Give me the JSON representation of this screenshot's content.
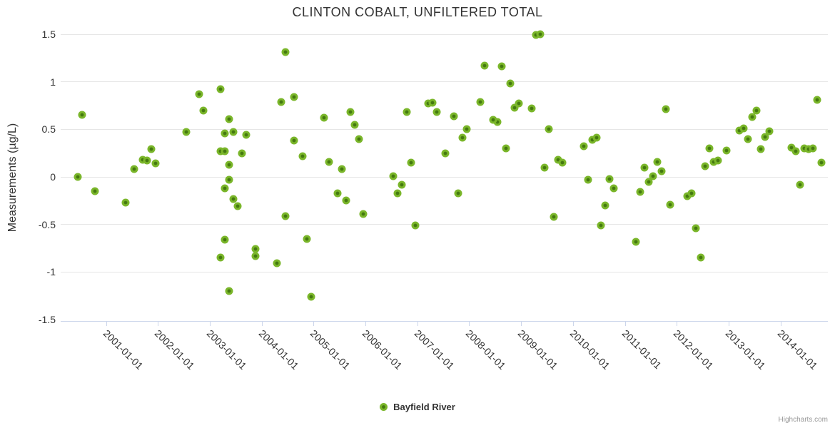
{
  "title": "CLINTON COBALT, UNFILTERED TOTAL",
  "y_axis": {
    "title": "Measurements (µg/L)",
    "tick_labels": [
      "1.5",
      "1",
      "0.5",
      "0",
      "-0.5",
      "-1",
      "-1.5"
    ],
    "tick_values": [
      1.5,
      1,
      0.5,
      0,
      -0.5,
      -1,
      -1.5
    ]
  },
  "x_axis": {
    "tick_labels": [
      "2001-01-01",
      "2002-01-01",
      "2003-01-01",
      "2004-01-01",
      "2005-01-01",
      "2006-01-01",
      "2007-01-01",
      "2008-01-01",
      "2009-01-01",
      "2010-01-01",
      "2011-01-01",
      "2012-01-01",
      "2013-01-01",
      "2014-01-01"
    ]
  },
  "legend": {
    "label": "Bayfield River"
  },
  "credits": "Highcharts.com",
  "colors": {
    "marker_outer": "#7ab62a",
    "marker_inner": "#44790f",
    "grid": "#e6e6e6",
    "axis_line": "#ccd6eb",
    "text": "#333333",
    "credits_text": "#999999"
  },
  "chart_data": {
    "type": "scatter",
    "title": "CLINTON COBALT, UNFILTERED TOTAL",
    "xlabel": "",
    "ylabel": "Measurements (µg/L)",
    "ylim": [
      -1.5,
      1.5
    ],
    "x_tick_years": [
      2001,
      2002,
      2003,
      2004,
      2005,
      2006,
      2007,
      2008,
      2009,
      2010,
      2011,
      2012,
      2013,
      2014
    ],
    "grid": "horizontal-only",
    "legend_position": "bottom-center",
    "series": [
      {
        "name": "Bayfield River",
        "points": [
          [
            "2000-06",
            0
          ],
          [
            "2000-07",
            0.65
          ],
          [
            "2000-10",
            -0.15
          ],
          [
            "2001-05",
            -0.27
          ],
          [
            "2001-07",
            0.08
          ],
          [
            "2001-09",
            0.18
          ],
          [
            "2001-10",
            0.17
          ],
          [
            "2001-11",
            0.29
          ],
          [
            "2001-12",
            0.14
          ],
          [
            "2002-07",
            0.47
          ],
          [
            "2002-10",
            0.87
          ],
          [
            "2002-11",
            0.7
          ],
          [
            "2003-03",
            0.92
          ],
          [
            "2003-05",
            0.61
          ],
          [
            "2003-04",
            0.46
          ],
          [
            "2003-06",
            0.47
          ],
          [
            "2003-03",
            0.27
          ],
          [
            "2003-04",
            0.27
          ],
          [
            "2003-08",
            0.25
          ],
          [
            "2003-09",
            0.44
          ],
          [
            "2003-05",
            0.13
          ],
          [
            "2003-05",
            -0.03
          ],
          [
            "2003-04",
            -0.12
          ],
          [
            "2003-06",
            -0.23
          ],
          [
            "2003-07",
            -0.31
          ],
          [
            "2003-04",
            -0.66
          ],
          [
            "2003-03",
            -0.85
          ],
          [
            "2003-05",
            -1.2
          ],
          [
            "2003-11",
            -0.76
          ],
          [
            "2003-11",
            -0.83
          ],
          [
            "2004-04",
            -0.91
          ],
          [
            "2004-06",
            -0.41
          ],
          [
            "2004-06",
            1.31
          ],
          [
            "2004-05",
            0.79
          ],
          [
            "2004-08",
            0.84
          ],
          [
            "2004-08",
            0.38
          ],
          [
            "2004-10",
            0.22
          ],
          [
            "2004-11",
            -0.65
          ],
          [
            "2004-12",
            -1.26
          ],
          [
            "2005-03",
            0.62
          ],
          [
            "2005-04",
            0.16
          ],
          [
            "2005-06",
            -0.17
          ],
          [
            "2005-07",
            0.08
          ],
          [
            "2005-08",
            -0.25
          ],
          [
            "2005-09",
            0.68
          ],
          [
            "2005-10",
            0.55
          ],
          [
            "2005-11",
            0.4
          ],
          [
            "2005-12",
            -0.39
          ],
          [
            "2006-07",
            0.01
          ],
          [
            "2006-08",
            -0.17
          ],
          [
            "2006-09",
            -0.08
          ],
          [
            "2006-10",
            0.68
          ],
          [
            "2006-11",
            0.15
          ],
          [
            "2006-12",
            -0.51
          ],
          [
            "2007-03",
            0.77
          ],
          [
            "2007-04",
            0.78
          ],
          [
            "2007-05",
            0.68
          ],
          [
            "2007-07",
            0.25
          ],
          [
            "2007-09",
            0.64
          ],
          [
            "2007-10",
            -0.17
          ],
          [
            "2007-11",
            0.41
          ],
          [
            "2007-12",
            0.5
          ],
          [
            "2008-03",
            0.79
          ],
          [
            "2008-04",
            1.17
          ],
          [
            "2008-08",
            1.16
          ],
          [
            "2008-07",
            0.58
          ],
          [
            "2008-06",
            0.6
          ],
          [
            "2008-09",
            0.3
          ],
          [
            "2008-10",
            0.98
          ],
          [
            "2008-11",
            0.73
          ],
          [
            "2008-12",
            0.77
          ],
          [
            "2009-03",
            0.72
          ],
          [
            "2009-04",
            1.49
          ],
          [
            "2009-05",
            1.5
          ],
          [
            "2009-06",
            0.1
          ],
          [
            "2009-07",
            0.5
          ],
          [
            "2009-08",
            -0.42
          ],
          [
            "2009-09",
            0.18
          ],
          [
            "2009-10",
            0.15
          ],
          [
            "2010-03",
            0.32
          ],
          [
            "2010-04",
            -0.03
          ],
          [
            "2010-05",
            0.39
          ],
          [
            "2010-06",
            0.41
          ],
          [
            "2010-07",
            -0.51
          ],
          [
            "2010-08",
            -0.3
          ],
          [
            "2010-09",
            -0.02
          ],
          [
            "2010-10",
            -0.12
          ],
          [
            "2011-03",
            -0.68
          ],
          [
            "2011-04",
            -0.16
          ],
          [
            "2011-05",
            0.1
          ],
          [
            "2011-06",
            -0.05
          ],
          [
            "2011-07",
            0.01
          ],
          [
            "2011-08",
            0.16
          ],
          [
            "2011-09",
            0.06
          ],
          [
            "2011-10",
            0.71
          ],
          [
            "2011-11",
            -0.29
          ],
          [
            "2012-03",
            -0.2
          ],
          [
            "2012-04",
            -0.17
          ],
          [
            "2012-05",
            -0.54
          ],
          [
            "2012-06",
            -0.85
          ],
          [
            "2012-07",
            0.11
          ],
          [
            "2012-08",
            0.3
          ],
          [
            "2012-09",
            0.16
          ],
          [
            "2012-10",
            0.17
          ],
          [
            "2012-12",
            0.28
          ],
          [
            "2013-03",
            0.49
          ],
          [
            "2013-04",
            0.51
          ],
          [
            "2013-05",
            0.4
          ],
          [
            "2013-06",
            0.63
          ],
          [
            "2013-07",
            0.7
          ],
          [
            "2013-08",
            0.29
          ],
          [
            "2013-09",
            0.42
          ],
          [
            "2013-10",
            0.48
          ],
          [
            "2014-03",
            0.31
          ],
          [
            "2014-04",
            0.27
          ],
          [
            "2014-05",
            -0.08
          ],
          [
            "2014-06",
            0.3
          ],
          [
            "2014-07",
            0.29
          ],
          [
            "2014-08",
            0.3
          ],
          [
            "2014-09",
            0.81
          ],
          [
            "2014-10",
            0.15
          ]
        ]
      }
    ]
  }
}
